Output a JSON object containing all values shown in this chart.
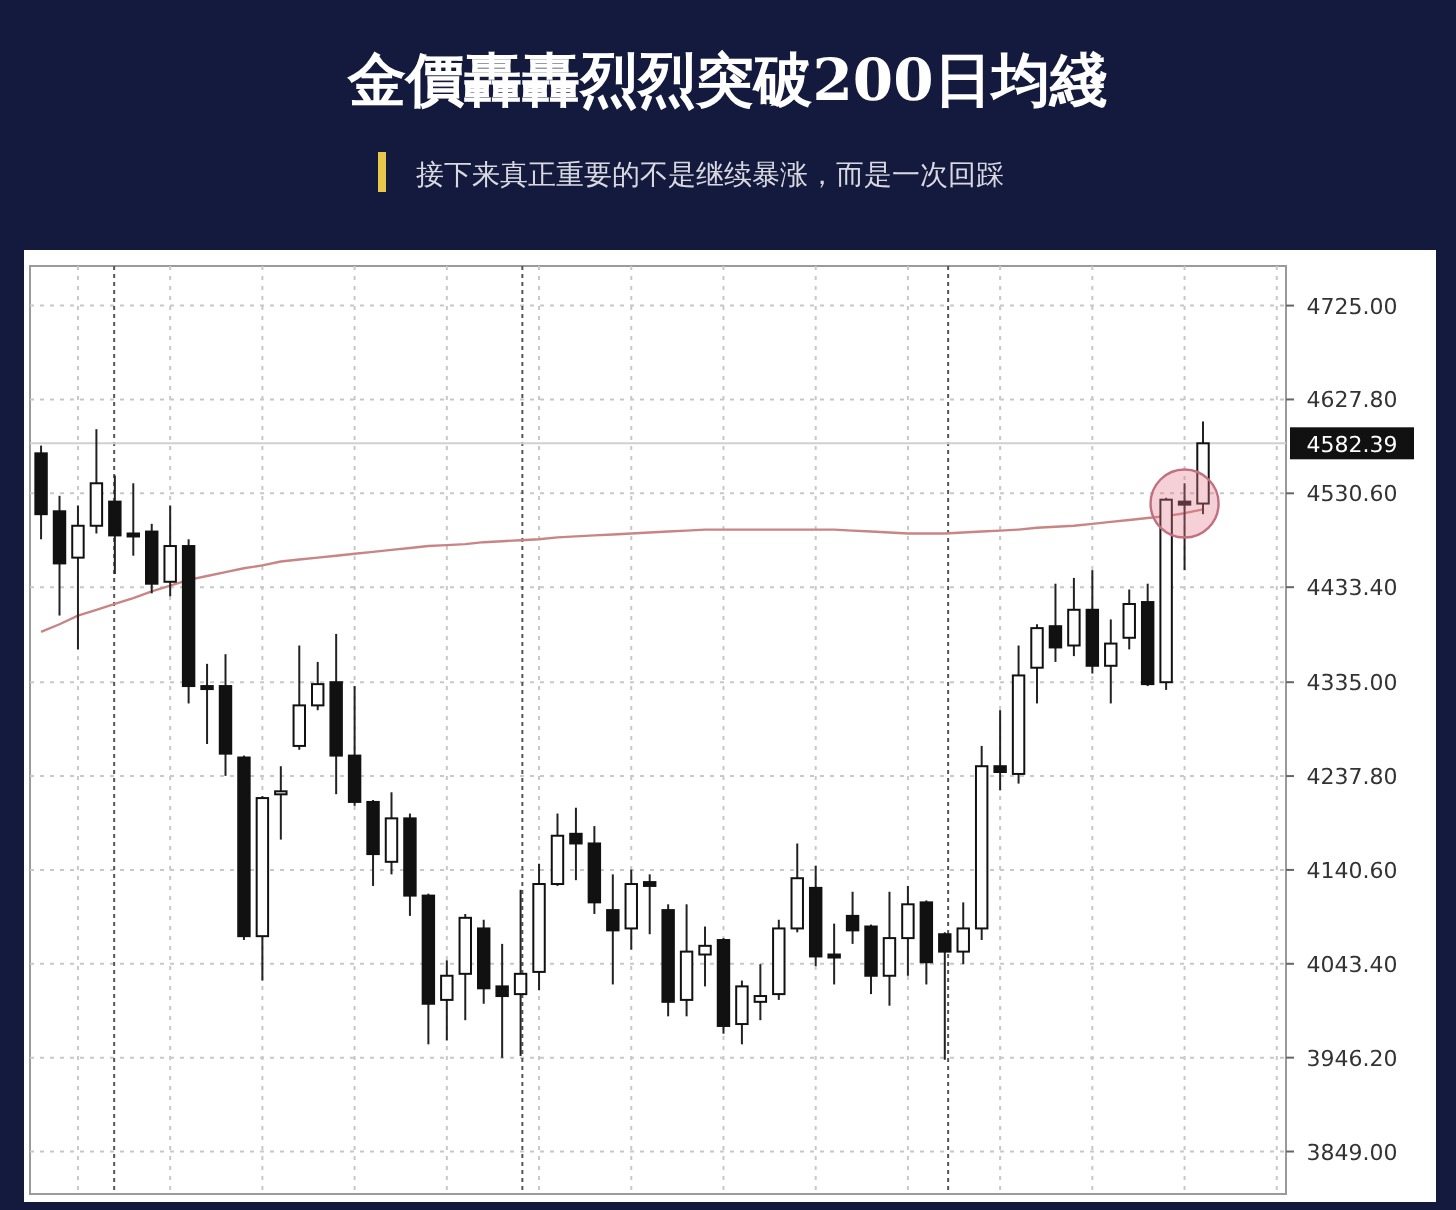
{
  "chart_data": {
    "type": "candlestick",
    "title": "金價轟轟烈烈突破200日均綫",
    "subtitle": "接下来真正重要的不是继续暴涨，而是一次回踩",
    "categories": [
      null,
      null,
      null,
      null,
      null,
      null,
      null,
      null,
      null,
      null,
      null,
      null,
      null,
      null,
      null,
      null,
      null,
      null,
      null,
      null,
      null,
      null,
      null,
      null,
      null,
      null,
      null,
      null,
      null,
      null,
      null,
      null,
      null,
      null,
      null,
      null,
      null,
      null,
      null,
      null,
      null,
      null,
      null,
      null,
      null,
      null,
      null,
      null,
      null,
      null,
      null,
      null,
      null,
      null,
      null,
      null,
      null,
      null,
      null,
      null,
      null,
      null,
      null,
      null
    ],
    "ohlc": [
      [
        4572,
        4580,
        4483,
        4509
      ],
      [
        4512,
        4528,
        4404,
        4458
      ],
      [
        4464,
        4518,
        4369,
        4497
      ],
      [
        4497,
        4597,
        4489,
        4541
      ],
      [
        4522,
        4549,
        4447,
        4487
      ],
      [
        4489,
        4541,
        4466,
        4488
      ],
      [
        4491,
        4499,
        4427,
        4437
      ],
      [
        4439,
        4518,
        4424,
        4476
      ],
      [
        4476,
        4483,
        4313,
        4331
      ],
      [
        4331,
        4354,
        4271,
        4330
      ],
      [
        4331,
        4364,
        4238,
        4261
      ],
      [
        4257,
        4259,
        4068,
        4072
      ],
      [
        4072,
        4217,
        4026,
        4215
      ],
      [
        4221,
        4248,
        4172,
        4222
      ],
      [
        4269,
        4373,
        4265,
        4311
      ],
      [
        4311,
        4356,
        4306,
        4333
      ],
      [
        4335,
        4385,
        4219,
        4259
      ],
      [
        4259,
        4331,
        4207,
        4211
      ],
      [
        4211,
        4213,
        4124,
        4157
      ],
      [
        4149,
        4221,
        4136,
        4194
      ],
      [
        4194,
        4199,
        4093,
        4114
      ],
      [
        4114,
        4116,
        3960,
        4002
      ],
      [
        4006,
        4047,
        3964,
        4031
      ],
      [
        4033,
        4095,
        3985,
        4091
      ],
      [
        4080,
        4089,
        4002,
        4018
      ],
      [
        4020,
        4064,
        3946,
        4010
      ],
      [
        4012,
        4120,
        3948,
        4033
      ],
      [
        4035,
        4147,
        4016,
        4126
      ],
      [
        4126,
        4199,
        4124,
        4176
      ],
      [
        4178,
        4205,
        4130,
        4168
      ],
      [
        4168,
        4186,
        4095,
        4107
      ],
      [
        4099,
        4136,
        4022,
        4078
      ],
      [
        4080,
        4141,
        4058,
        4126
      ],
      [
        4128,
        4136,
        4074,
        4124
      ],
      [
        4099,
        4105,
        3989,
        4004
      ],
      [
        4006,
        4105,
        3989,
        4056
      ],
      [
        4053,
        4082,
        4020,
        4062
      ],
      [
        4068,
        4070,
        3971,
        3979
      ],
      [
        3981,
        4026,
        3960,
        4020
      ],
      [
        4004,
        4043,
        3985,
        4010
      ],
      [
        4012,
        4089,
        4006,
        4080
      ],
      [
        4080,
        4168,
        4076,
        4132
      ],
      [
        4122,
        4145,
        4041,
        4051
      ],
      [
        4053,
        4085,
        4022,
        4052
      ],
      [
        4093,
        4118,
        4064,
        4078
      ],
      [
        4082,
        4084,
        4012,
        4031
      ],
      [
        4031,
        4118,
        4000,
        4070
      ],
      [
        4070,
        4124,
        4031,
        4105
      ],
      [
        4107,
        4109,
        4022,
        4045
      ],
      [
        4074,
        4076,
        3944,
        4056
      ],
      [
        4056,
        4107,
        4043,
        4080
      ],
      [
        4080,
        4269,
        4068,
        4248
      ],
      [
        4248,
        4306,
        4223,
        4242
      ],
      [
        4240,
        4373,
        4230,
        4342
      ],
      [
        4350,
        4395,
        4313,
        4391
      ],
      [
        4393,
        4437,
        4356,
        4371
      ],
      [
        4373,
        4443,
        4362,
        4410
      ],
      [
        4410,
        4451,
        4344,
        4352
      ],
      [
        4352,
        4400,
        4313,
        4375
      ],
      [
        4381,
        4431,
        4369,
        4416
      ],
      [
        4418,
        4437,
        4331,
        4333
      ],
      [
        4335,
        4526,
        4327,
        4524
      ],
      [
        4522,
        4541,
        4451,
        4520
      ],
      [
        4520,
        4605,
        4509,
        4582.39
      ]
    ],
    "series": [
      {
        "type": "line",
        "color": "#c98585",
        "values": [
          4387,
          4395,
          4404,
          4410,
          4416,
          4422,
          4429,
          4435,
          4441,
          4445,
          4449,
          4453,
          4456,
          4460,
          4462,
          4464,
          4466,
          4468,
          4470,
          4472,
          4474,
          4476,
          4477,
          4478,
          4480,
          4481,
          4482,
          4483,
          4485,
          4486,
          4487,
          4488,
          4489,
          4490,
          4491,
          4492,
          4493,
          4493,
          4493,
          4493,
          4493,
          4493,
          4493,
          4493,
          4492,
          4491,
          4490,
          4489,
          4489,
          4489,
          4490,
          4491,
          4492,
          4493,
          4495,
          4496,
          4497,
          4499,
          4501,
          4503,
          4505,
          4507,
          4510,
          4514
        ]
      }
    ],
    "ylim": [
      3805,
      4766
    ],
    "yticks": [
      {
        "value": 3849,
        "label": "3849.00"
      },
      {
        "value": 3946.2,
        "label": "3946.20"
      },
      {
        "value": 4043.4,
        "label": "4043.40"
      },
      {
        "value": 4140.6,
        "label": "4140.60"
      },
      {
        "value": 4237.8,
        "label": "4237.80"
      },
      {
        "value": 4335,
        "label": "4335.00"
      },
      {
        "value": 4433.4,
        "label": "4433.40"
      },
      {
        "value": 4530.6,
        "label": "4530.60"
      },
      {
        "value": 4627.8,
        "label": "4627.80"
      },
      {
        "value": 4725,
        "label": "4725.00"
      }
    ],
    "ref_lines": [
      {
        "axis": "y",
        "value": 4582.39,
        "label": "4582.39",
        "color": "#d0d0d0",
        "line_style": "solid"
      }
    ],
    "grid": true
  }
}
